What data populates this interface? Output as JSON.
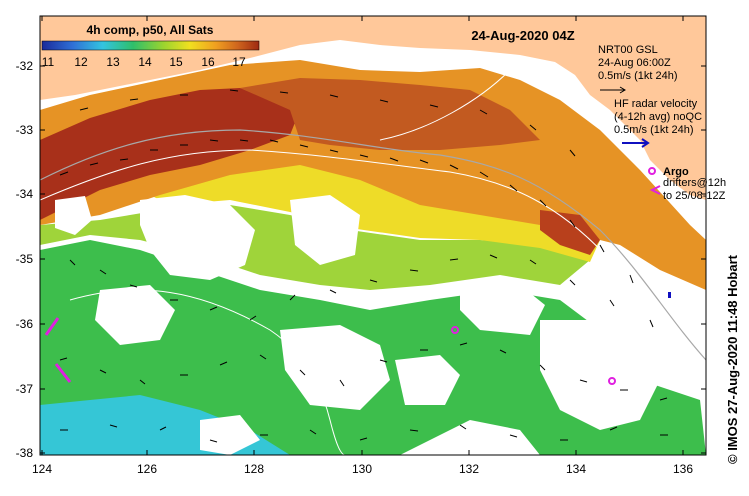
{
  "map": {
    "timestamp": "24-Aug-2020 04Z",
    "credit": "© IMOS 27-Aug-2020 11:48 Hobart",
    "colorbar": {
      "title": "4h comp, p50, All Sats",
      "ticks": [
        "11",
        "12",
        "13",
        "14",
        "15",
        "16",
        "17"
      ],
      "colors": [
        "#1b2a9a",
        "#2f6fd6",
        "#33c4e0",
        "#2fbf6a",
        "#9bd42f",
        "#f0e020",
        "#f0a020",
        "#d0661e",
        "#9e2a12"
      ]
    },
    "axes": {
      "lat_labels": [
        "-32",
        "-33",
        "-34",
        "-35",
        "-36",
        "-37",
        "-38"
      ],
      "lon_labels": [
        "124",
        "126",
        "128",
        "130",
        "132",
        "134",
        "136"
      ]
    },
    "legend": {
      "nrt_title": "NRT00 GSL",
      "nrt_time": "24-Aug 06:00Z",
      "nrt_scale": "0.5m/s (1kt 24h)",
      "hf_title": "HF radar velocity",
      "hf_avg": "(4-12h avg) noQC",
      "hf_scale": "0.5m/s (1kt 24h)",
      "argo_label": "Argo",
      "drifter_label_1": "drifters@12h",
      "drifter_label_2": "to 25/08-12Z"
    },
    "colors": {
      "land": "#ffc89a",
      "ocean_nodata": "#ffffff",
      "argo": "#e020e0",
      "hf_arrow": "#1010c0"
    }
  }
}
